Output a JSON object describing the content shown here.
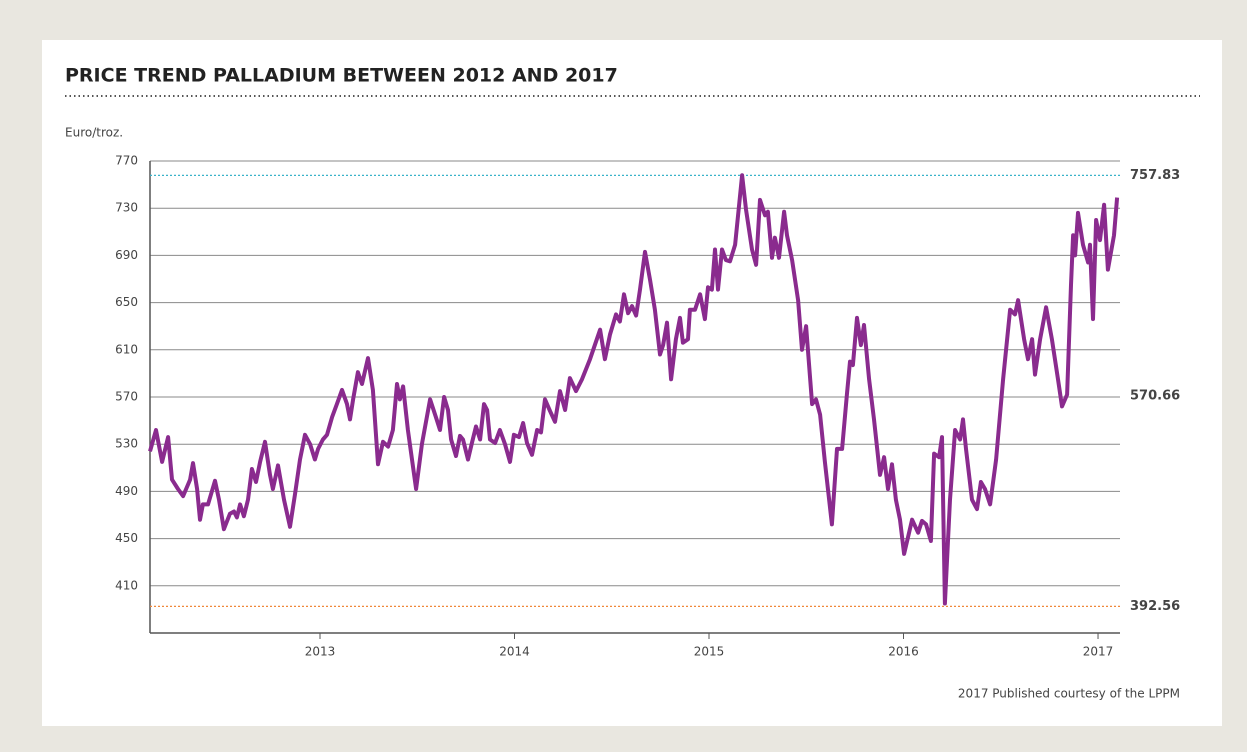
{
  "chart_data": {
    "type": "line",
    "title": "PRICE TREND PALLADIUM BETWEEN 2012 AND 2017",
    "ylabel": "Euro/troz.",
    "source": "2017 Published courtesy of the LPPM",
    "xlim": [
      2012.126,
      2017.113
    ],
    "xticks": [
      2013,
      2014,
      2015,
      2016,
      2017
    ],
    "ylim": [
      370,
      770
    ],
    "yticks": [
      410,
      450,
      490,
      530,
      570,
      610,
      650,
      690,
      730,
      770
    ],
    "grid": true,
    "reference_lines": [
      {
        "value": 757.83,
        "color": "#3ab3c9",
        "line": true
      },
      {
        "value": 570.66,
        "color": "#333333",
        "line": false
      },
      {
        "value": 392.56,
        "color": "#f0883a",
        "line": true
      }
    ],
    "series": [
      {
        "color": "#8a2b8e",
        "x": [
          2012.126,
          2012.157,
          2012.188,
          2012.219,
          2012.239,
          2012.27,
          2012.296,
          2012.332,
          2012.347,
          2012.368,
          2012.383,
          2012.398,
          2012.424,
          2012.46,
          2012.481,
          2012.506,
          2012.537,
          2012.558,
          2012.573,
          2012.589,
          2012.609,
          2012.63,
          2012.65,
          2012.671,
          2012.692,
          2012.717,
          2012.743,
          2012.758,
          2012.784,
          2012.815,
          2012.846,
          2012.871,
          2012.897,
          2012.923,
          2012.949,
          2012.974,
          2012.99,
          2013.015,
          2013.036,
          2013.062,
          2013.087,
          2013.113,
          2013.139,
          2013.154,
          2013.17,
          2013.195,
          2013.216,
          2013.247,
          2013.272,
          2013.298,
          2013.324,
          2013.35,
          2013.375,
          2013.396,
          2013.411,
          2013.427,
          2013.452,
          2013.494,
          2013.524,
          2013.566,
          2013.596,
          2013.617,
          2013.638,
          2013.658,
          2013.674,
          2013.699,
          2013.72,
          2013.735,
          2013.761,
          2013.781,
          2013.802,
          2013.823,
          2013.843,
          2013.859,
          2013.874,
          2013.9,
          2013.925,
          2013.951,
          2013.977,
          2013.997,
          2014.023,
          2014.044,
          2014.064,
          2014.09,
          2014.116,
          2014.136,
          2014.157,
          2014.183,
          2014.208,
          2014.234,
          2014.26,
          2014.285,
          2014.316,
          2014.347,
          2014.388,
          2014.44,
          2014.465,
          2014.491,
          2014.522,
          2014.542,
          2014.563,
          2014.584,
          2014.604,
          2014.625,
          2014.645,
          2014.671,
          2014.697,
          2014.722,
          2014.748,
          2014.764,
          2014.784,
          2014.805,
          2014.83,
          2014.851,
          2014.866,
          2014.892,
          2014.902,
          2014.928,
          2014.954,
          2014.979,
          2014.995,
          2015.015,
          2015.031,
          2015.046,
          2015.067,
          2015.087,
          2015.108,
          2015.134,
          2015.17,
          2015.19,
          2015.221,
          2015.242,
          2015.262,
          2015.288,
          2015.303,
          2015.324,
          2015.339,
          2015.36,
          2015.386,
          2015.401,
          2015.427,
          2015.458,
          2015.478,
          2015.499,
          2015.53,
          2015.55,
          2015.571,
          2015.596,
          2015.632,
          2015.658,
          2015.684,
          2015.709,
          2015.725,
          2015.74,
          2015.761,
          2015.781,
          2015.797,
          2015.823,
          2015.848,
          2015.879,
          2015.9,
          2015.92,
          2015.941,
          2015.961,
          2015.982,
          2016.003,
          2016.044,
          2016.075,
          2016.095,
          2016.116,
          2016.141,
          2016.157,
          2016.183,
          2016.198,
          2016.213,
          2016.239,
          2016.265,
          2016.291,
          2016.306,
          2016.321,
          2016.352,
          2016.378,
          2016.398,
          2016.419,
          2016.445,
          2016.476,
          2016.512,
          2016.548,
          2016.573,
          2016.589,
          2016.62,
          2016.64,
          2016.661,
          2016.676,
          2016.702,
          2016.733,
          2016.763,
          2016.794,
          2016.815,
          2016.841,
          2016.861,
          2016.872,
          2016.882,
          2016.897,
          2016.923,
          2016.949,
          2016.959,
          2016.974,
          2016.99,
          2017.01,
          2017.031,
          2017.051,
          2017.082,
          2017.098
        ],
        "values": [
          524,
          542,
          515,
          536,
          500,
          492,
          486,
          500,
          514,
          492,
          466,
          479,
          479,
          499,
          483,
          458,
          471,
          473,
          468,
          479,
          469,
          483,
          509,
          498,
          515,
          532,
          504,
          492,
          512,
          483,
          460,
          487,
          517,
          538,
          530,
          517,
          526,
          534,
          538,
          553,
          564,
          576,
          564,
          551,
          568,
          591,
          581,
          603,
          576,
          513,
          532,
          528,
          542,
          581,
          568,
          579,
          542,
          492,
          530,
          568,
          553,
          542,
          570,
          559,
          534,
          520,
          537,
          534,
          517,
          531,
          545,
          534,
          564,
          559,
          534,
          531,
          542,
          530,
          515,
          538,
          536,
          548,
          531,
          521,
          542,
          540,
          568,
          558,
          549,
          575,
          559,
          586,
          575,
          585,
          602,
          627,
          602,
          623,
          640,
          634,
          657,
          641,
          647,
          639,
          661,
          693,
          669,
          644,
          606,
          614,
          633,
          585,
          619,
          637,
          616,
          619,
          644,
          644,
          657,
          636,
          663,
          661,
          695,
          661,
          695,
          686,
          685,
          699,
          758,
          729,
          695,
          682,
          737,
          724,
          727,
          688,
          705,
          688,
          727,
          707,
          686,
          652,
          610,
          630,
          564,
          568,
          555,
          515,
          462,
          526,
          526,
          572,
          600,
          597,
          637,
          614,
          631,
          585,
          551,
          504,
          519,
          492,
          513,
          483,
          466,
          437,
          466,
          455,
          465,
          462,
          448,
          522,
          519,
          536,
          395,
          483,
          542,
          534,
          551,
          526,
          483,
          475,
          498,
          492,
          479,
          517,
          585,
          644,
          640,
          652,
          619,
          602,
          619,
          589,
          619,
          646,
          619,
          585,
          562,
          572,
          665,
          707,
          690,
          726,
          699,
          684,
          699,
          636,
          720,
          703,
          733,
          678,
          707,
          739
        ]
      }
    ]
  }
}
